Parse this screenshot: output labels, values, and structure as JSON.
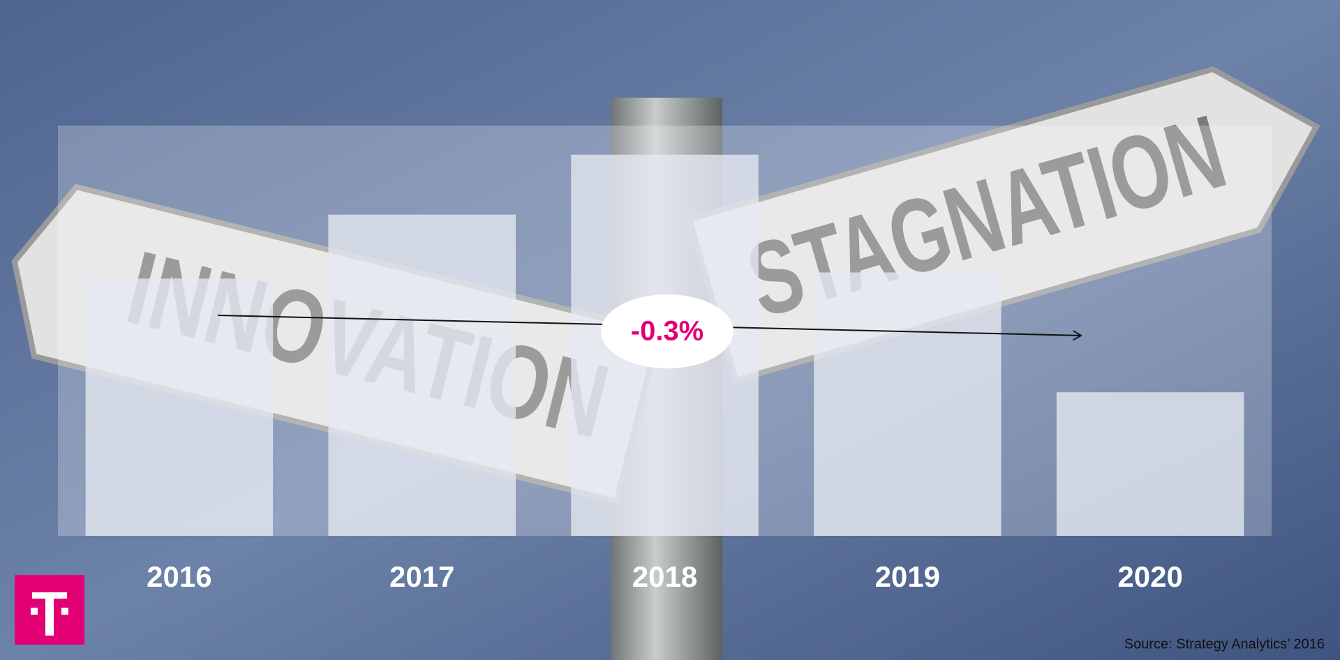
{
  "chart_data": {
    "type": "bar",
    "categories": [
      "2016",
      "2017",
      "2018",
      "2019",
      "2020"
    ],
    "values": [
      62.7,
      78.3,
      92.9,
      64.2,
      35
    ],
    "color": "#e6e9f1",
    "ylim": [
      0,
      100
    ],
    "annotation": "-0.3%",
    "source": "Source: Strategy Analytics’ 2016"
  },
  "background_signs": [
    "INNOVATION",
    "STAGNATION"
  ]
}
